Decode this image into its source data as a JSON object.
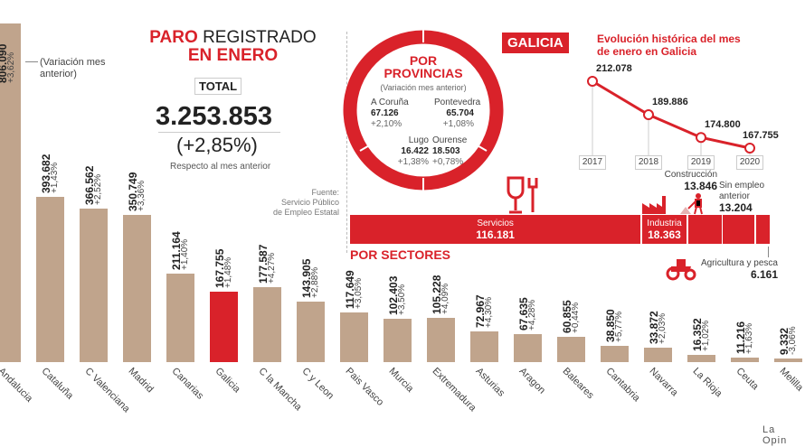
{
  "header": {
    "title_red": "PARO",
    "title_rest": "REGISTRADO",
    "title_line2": "EN ENERO",
    "total_tag": "TOTAL",
    "total_value": "3.253.853",
    "total_change": "(+2,85%)",
    "total_note": "Respecto al mes anterior",
    "variation_note": "(Variación mes anterior)"
  },
  "source": {
    "label": "Fuente:",
    "text": "Servicio Público de Empleo Estatal"
  },
  "credit": "La Opin",
  "colors": {
    "bar": "#c0a48c",
    "highlight": "#d9222a",
    "accent": "#d9222a"
  },
  "chart_data": [
    {
      "type": "bar",
      "title": "",
      "highlight": "Galicia",
      "categories": [
        "Andalucia",
        "Cataluña",
        "C Valenciana",
        "Madrid",
        "Canarias",
        "Galicia",
        "C la Mancha",
        "C y Leon",
        "Pais Vasco",
        "Murcia",
        "Extremadura",
        "Asturias",
        "Aragon",
        "Baleares",
        "Cantabria",
        "Navarra",
        "La Rioja",
        "Ceuta",
        "Melilla"
      ],
      "values": [
        806090,
        393682,
        366562,
        350749,
        211164,
        167755,
        177587,
        143905,
        117649,
        102403,
        105228,
        72967,
        67635,
        60855,
        38850,
        33872,
        16352,
        11216,
        9332
      ],
      "value_labels": [
        "806.090",
        "393.682",
        "366.562",
        "350.749",
        "211.164",
        "167.755",
        "177.587",
        "143.905",
        "117.649",
        "102.403",
        "105.228",
        "72.967",
        "67.635",
        "60.855",
        "38.850",
        "33.872",
        "16.352",
        "11.216",
        "9.332"
      ],
      "change_labels": [
        "+3,62%",
        "+1,43%",
        "+2,52%",
        "+3,36%",
        "+1,40%",
        "+1,48%",
        "+4,27%",
        "+2,88%",
        "+3,05%",
        "+3,50%",
        "+4,09%",
        "+4,30%",
        "+4,28%",
        "+0,44%",
        "+5,77%",
        "+2,03%",
        "+1,02%",
        "+1,63%",
        "-3,06%"
      ]
    },
    {
      "type": "line",
      "title": "Evolución histórica del mes de enero en Galicia",
      "x": [
        "2017",
        "2018",
        "2019",
        "2020"
      ],
      "values": [
        212078,
        189886,
        174800,
        167755
      ],
      "value_labels": [
        "212.078",
        "189.886",
        "174.800",
        "167.755"
      ]
    },
    {
      "type": "bar",
      "title": "POR SECTORES",
      "orientation": "stacked-horizontal",
      "categories": [
        "Servicios",
        "Industria",
        "Construcción",
        "Sin empleo anterior",
        "Agricultura y pesca"
      ],
      "values": [
        116181,
        18363,
        13846,
        13204,
        6161
      ],
      "value_labels": [
        "116.181",
        "18.363",
        "13.846",
        "13.204",
        "6.161"
      ]
    },
    {
      "type": "table",
      "title": "POR PROVINCIAS",
      "subtitle": "(Variación mes anterior)",
      "rows": [
        {
          "name": "A Coruña",
          "value": "67.126",
          "change": "+2,10%"
        },
        {
          "name": "Pontevedra",
          "value": "65.704",
          "change": "+1,08%"
        },
        {
          "name": "Lugo",
          "value": "16.422",
          "change": "+1,38%"
        },
        {
          "name": "Ourense",
          "value": "18.503",
          "change": "+0,78%"
        }
      ]
    }
  ],
  "galicia_tag": "GALICIA"
}
